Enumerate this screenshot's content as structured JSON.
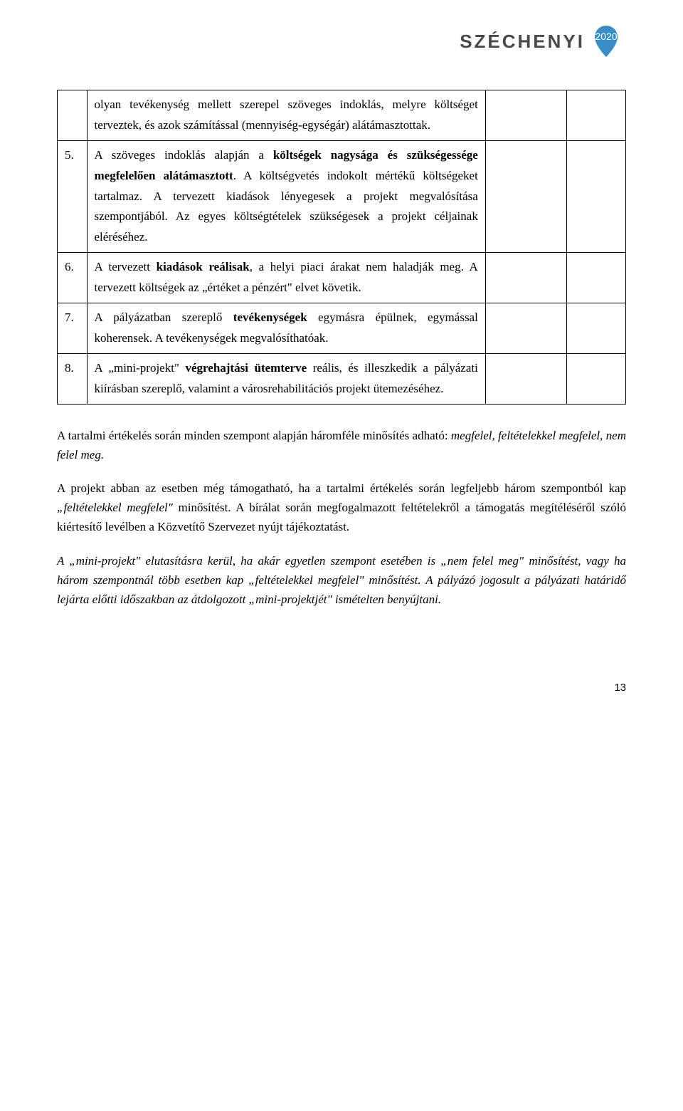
{
  "logo": {
    "text": "SZÉCHENYI",
    "year": "2020"
  },
  "table": {
    "rows": [
      {
        "num": "",
        "desc_html": "olyan tevékenység mellett szerepel szöveges indoklás, melyre költséget terveztek, és azok számítással (mennyiség-egységár) alátámasztottak."
      },
      {
        "num": "5.",
        "desc_html": "A szöveges indoklás alapján a <b>költségek nagysága és szükségessége megfelelően alátámasztott</b>. A költségvetés indokolt mértékű költségeket tartalmaz. A tervezett kiadások lényegesek a projekt megvalósítása szempontjából. Az egyes költségtételek szükségesek a projekt céljainak eléréséhez."
      },
      {
        "num": "6.",
        "desc_html": "A tervezett <b>kiadások reálisak</b>, a helyi piaci árakat nem haladják meg. A tervezett költségek az „értéket a pénzért\" elvet követik."
      },
      {
        "num": "7.",
        "desc_html": "A pályázatban szereplő <b>tevékenységek</b> egymásra épülnek, egymással koherensek. A tevékenységek megvalósíthatóak."
      },
      {
        "num": "8.",
        "desc_html": "A „mini-projekt\" <b>végrehajtási ütemterve</b> reális, és illeszkedik a pályázati kiírásban szereplő, valamint a városrehabilitációs projekt ütemezéséhez."
      }
    ]
  },
  "paragraphs": {
    "p1_pre": "A tartalmi értékelés során minden szempont alapján háromféle minősítés adható: ",
    "p1_italic": "megfelel, feltételekkel megfelel, nem felel meg.",
    "p2_part1": "A projekt abban az esetben még támogatható, ha a tartalmi értékelés során legfeljebb három szempontból kap ",
    "p2_italic1": "„feltételekkel megfelel\"",
    "p2_part2": " minősítést. A bírálat során megfogalmazott feltételekről a támogatás megítéléséről szóló kiértesítő levélben a Közvetítő Szervezet nyújt tájékoztatást.",
    "p3": "A „mini-projekt\" elutasításra kerül, ha akár egyetlen szempont esetében is „nem felel meg\" minősítést, vagy ha három szempontnál több esetben kap „feltételekkel megfelel\" minősítést. A pályázó jogosult a pályázati határidő lejárta előtti időszakban az átdolgozott „mini-projektjét\" ismételten benyújtani."
  },
  "page_number": "13",
  "colors": {
    "logo_text": "#4a4a4a",
    "logo_badge_bg": "#3a8ec7",
    "border": "#000000",
    "text": "#000000"
  }
}
